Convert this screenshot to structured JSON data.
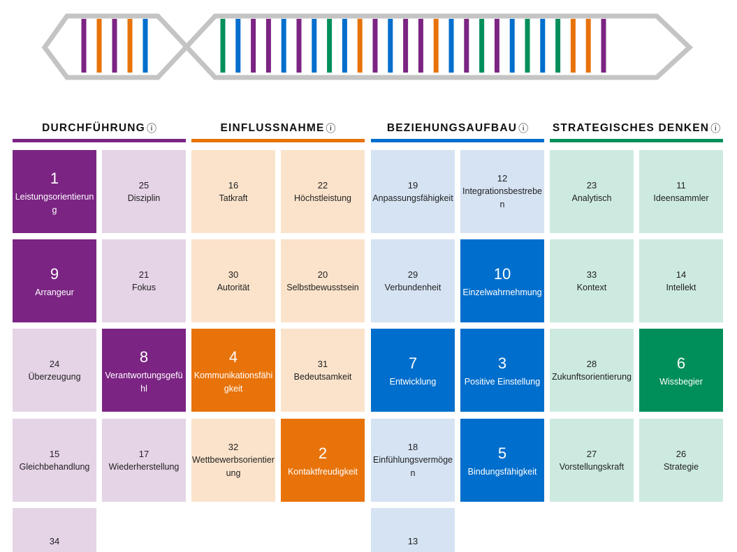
{
  "categories": [
    {
      "key": "durchfuehrung",
      "title": "DURCHFÜHRUNG",
      "info_icon": "ⓘ",
      "color": "#7b2483",
      "light": "#e5d3e6"
    },
    {
      "key": "einflussnahme",
      "title": "EINFLUSSNAHME",
      "info_icon": "ⓘ",
      "color": "#e8730a",
      "light": "#fbe3cb"
    },
    {
      "key": "beziehungsaufbau",
      "title": "BEZIEHUNGSAUFBAU",
      "info_icon": "ⓘ",
      "color": "#006ecc",
      "light": "#d5e3f3"
    },
    {
      "key": "strategisches_denken",
      "title": "STRATEGISCHES DENKEN",
      "info_icon": "ⓘ",
      "color": "#008f5a",
      "light": "#cdeae0"
    }
  ],
  "dna_icon": "dna-strand-icon",
  "dna_stripes": {
    "left": [
      "purple",
      "orange",
      "purple",
      "orange",
      "blue"
    ],
    "right": [
      "green",
      "blue",
      "purple",
      "purple",
      "blue",
      "purple",
      "blue",
      "green",
      "blue",
      "orange",
      "purple",
      "blue",
      "purple",
      "purple",
      "orange",
      "blue",
      "purple",
      "green",
      "purple",
      "blue",
      "green",
      "blue",
      "green",
      "orange",
      "orange",
      "purple"
    ]
  },
  "tiles": [
    {
      "rank": "1",
      "label": "Leistungsorientierung",
      "category": 0,
      "col": 0,
      "row": 0,
      "top": true
    },
    {
      "rank": "25",
      "label": "Disziplin",
      "category": 0,
      "col": 1,
      "row": 0,
      "top": false
    },
    {
      "rank": "9",
      "label": "Arrangeur",
      "category": 0,
      "col": 0,
      "row": 1,
      "top": true
    },
    {
      "rank": "21",
      "label": "Fokus",
      "category": 0,
      "col": 1,
      "row": 1,
      "top": false
    },
    {
      "rank": "24",
      "label": "Überzeugung",
      "category": 0,
      "col": 0,
      "row": 2,
      "top": false
    },
    {
      "rank": "8",
      "label": "Verantwortungsgefühl",
      "category": 0,
      "col": 1,
      "row": 2,
      "top": true
    },
    {
      "rank": "15",
      "label": "Gleichbehandlung",
      "category": 0,
      "col": 0,
      "row": 3,
      "top": false
    },
    {
      "rank": "17",
      "label": "Wiederherstellung",
      "category": 0,
      "col": 1,
      "row": 3,
      "top": false
    },
    {
      "rank": "34",
      "label": "",
      "category": 0,
      "col": 0,
      "row": 4,
      "top": false
    },
    {
      "rank": "16",
      "label": "Tatkraft",
      "category": 1,
      "col": 0,
      "row": 0,
      "top": false
    },
    {
      "rank": "22",
      "label": "Höchstleistung",
      "category": 1,
      "col": 1,
      "row": 0,
      "top": false
    },
    {
      "rank": "30",
      "label": "Autorität",
      "category": 1,
      "col": 0,
      "row": 1,
      "top": false
    },
    {
      "rank": "20",
      "label": "Selbstbewusstsein",
      "category": 1,
      "col": 1,
      "row": 1,
      "top": false
    },
    {
      "rank": "4",
      "label": "Kommunikationsfähigkeit",
      "category": 1,
      "col": 0,
      "row": 2,
      "top": true
    },
    {
      "rank": "31",
      "label": "Bedeutsamkeit",
      "category": 1,
      "col": 1,
      "row": 2,
      "top": false
    },
    {
      "rank": "32",
      "label": "Wettbewerbsorientierung",
      "category": 1,
      "col": 0,
      "row": 3,
      "top": false
    },
    {
      "rank": "2",
      "label": "Kontaktfreudigkeit",
      "category": 1,
      "col": 1,
      "row": 3,
      "top": true
    },
    {
      "rank": "19",
      "label": "Anpassungsfähigkeit",
      "category": 2,
      "col": 0,
      "row": 0,
      "top": false
    },
    {
      "rank": "12",
      "label": "Integrationsbestreben",
      "category": 2,
      "col": 1,
      "row": 0,
      "top": false
    },
    {
      "rank": "29",
      "label": "Verbundenheit",
      "category": 2,
      "col": 0,
      "row": 1,
      "top": false
    },
    {
      "rank": "10",
      "label": "Einzelwahrnehmung",
      "category": 2,
      "col": 1,
      "row": 1,
      "top": true
    },
    {
      "rank": "7",
      "label": "Entwicklung",
      "category": 2,
      "col": 0,
      "row": 2,
      "top": true
    },
    {
      "rank": "3",
      "label": "Positive Einstellung",
      "category": 2,
      "col": 1,
      "row": 2,
      "top": true
    },
    {
      "rank": "18",
      "label": "Einfühlungsvermögen",
      "category": 2,
      "col": 0,
      "row": 3,
      "top": false
    },
    {
      "rank": "5",
      "label": "Bindungsfähigkeit",
      "category": 2,
      "col": 1,
      "row": 3,
      "top": true
    },
    {
      "rank": "13",
      "label": "",
      "category": 2,
      "col": 0,
      "row": 4,
      "top": false
    },
    {
      "rank": "23",
      "label": "Analytisch",
      "category": 3,
      "col": 0,
      "row": 0,
      "top": false
    },
    {
      "rank": "11",
      "label": "Ideensammler",
      "category": 3,
      "col": 1,
      "row": 0,
      "top": false
    },
    {
      "rank": "33",
      "label": "Kontext",
      "category": 3,
      "col": 0,
      "row": 1,
      "top": false
    },
    {
      "rank": "14",
      "label": "Intellekt",
      "category": 3,
      "col": 1,
      "row": 1,
      "top": false
    },
    {
      "rank": "28",
      "label": "Zukunftsorientierung",
      "category": 3,
      "col": 0,
      "row": 2,
      "top": false
    },
    {
      "rank": "6",
      "label": "Wissbegier",
      "category": 3,
      "col": 1,
      "row": 2,
      "top": true
    },
    {
      "rank": "27",
      "label": "Vorstellungskraft",
      "category": 3,
      "col": 0,
      "row": 3,
      "top": false
    },
    {
      "rank": "26",
      "label": "Strategie",
      "category": 3,
      "col": 1,
      "row": 3,
      "top": false
    }
  ]
}
